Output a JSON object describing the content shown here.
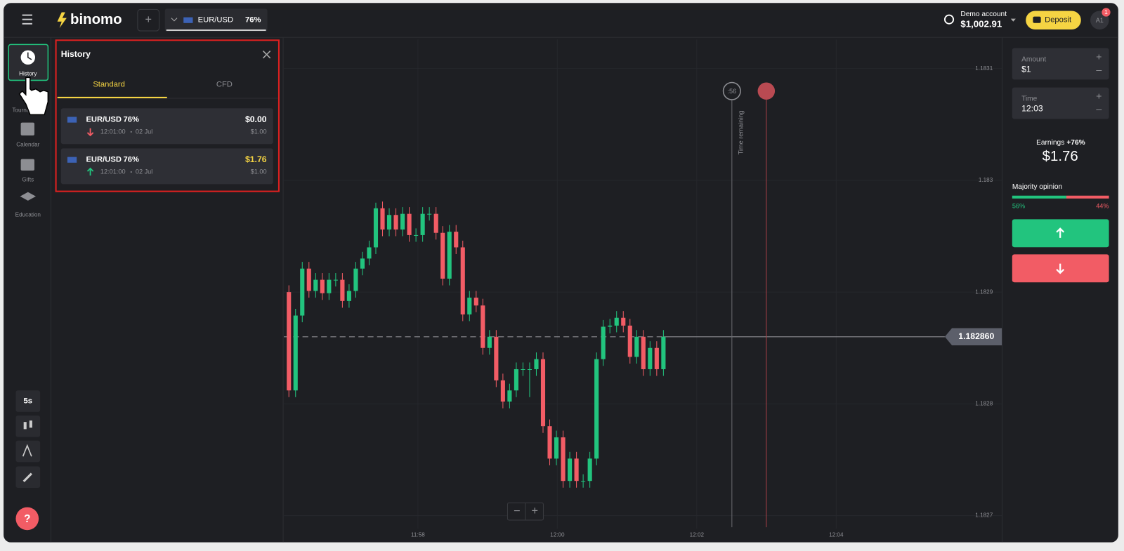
{
  "header": {
    "logo": "binomo",
    "asset": "EUR/USD",
    "payout": "76%",
    "account_label": "Demo account",
    "balance": "$1,002.91",
    "deposit": "Deposit",
    "avatar": "A1",
    "notifications": "1"
  },
  "sidebar": {
    "items": [
      "History",
      "Tournaments",
      "Calendar",
      "Gifts",
      "Education"
    ],
    "timeframe": "5s",
    "help": "?"
  },
  "history": {
    "title": "History",
    "tabs": [
      "Standard",
      "CFD"
    ],
    "trades": [
      {
        "asset": "EUR/USD",
        "payout": "76%",
        "time": "12:01:00",
        "date": "02 Jul",
        "profit": "$0.00",
        "amount": "$1.00",
        "direction": "down"
      },
      {
        "asset": "EUR/USD",
        "payout": "76%",
        "time": "12:01:00",
        "date": "02 Jul",
        "profit": "$1.76",
        "amount": "$1.00",
        "direction": "up"
      }
    ]
  },
  "chart": {
    "ylim": [
      1.182687,
      1.183126
    ],
    "yticks": [
      1.1827,
      1.1828,
      1.1829,
      1.183,
      1.1831
    ],
    "xticks": [
      "11:58",
      "12:00",
      "12:02",
      "12:04"
    ],
    "current_price": {
      "value": 1.18286,
      "label": "1.182860"
    },
    "timer": ":56",
    "time_remaining": "Time remaining",
    "candles": [
      [
        1.1829,
        1.182906,
        1.182806,
        1.182812
      ],
      [
        1.182812,
        1.182885,
        1.182806,
        1.182879
      ],
      [
        1.182879,
        1.182927,
        1.182873,
        1.182921
      ],
      [
        1.182921,
        1.182927,
        1.182895,
        1.182901
      ],
      [
        1.182901,
        1.182917,
        1.182895,
        1.182911
      ],
      [
        1.182911,
        1.182917,
        1.182893,
        1.182899
      ],
      [
        1.182899,
        1.182917,
        1.182893,
        1.182911
      ],
      [
        1.182911,
        1.182917,
        1.182905,
        1.182911
      ],
      [
        1.182911,
        1.182917,
        1.182886,
        1.182892
      ],
      [
        1.182892,
        1.182907,
        1.182886,
        1.182901
      ],
      [
        1.182901,
        1.182927,
        1.182895,
        1.182921
      ],
      [
        1.182921,
        1.182936,
        1.182915,
        1.18293
      ],
      [
        1.18293,
        1.182946,
        1.182924,
        1.18294
      ],
      [
        1.18294,
        1.18298,
        1.182934,
        1.182975
      ],
      [
        1.182975,
        1.182981,
        1.18295,
        1.182956
      ],
      [
        1.182956,
        1.182975,
        1.18295,
        1.182969
      ],
      [
        1.182969,
        1.182975,
        1.18295,
        1.182956
      ],
      [
        1.182956,
        1.182976,
        1.18295,
        1.18297
      ],
      [
        1.18297,
        1.182976,
        1.182945,
        1.182951
      ],
      [
        1.182951,
        1.182957,
        1.182945,
        1.182951
      ],
      [
        1.182951,
        1.182976,
        1.182945,
        1.18297
      ],
      [
        1.18297,
        1.182976,
        1.182964,
        1.18297
      ],
      [
        1.18297,
        1.182976,
        1.182947,
        1.182953
      ],
      [
        1.182953,
        1.182959,
        1.182906,
        1.182912
      ],
      [
        1.182912,
        1.18296,
        1.182906,
        1.182954
      ],
      [
        1.182954,
        1.18296,
        1.182934,
        1.18294
      ],
      [
        1.18294,
        1.182946,
        1.182874,
        1.18288
      ],
      [
        1.18288,
        1.182901,
        1.182874,
        1.182895
      ],
      [
        1.182895,
        1.182901,
        1.182882,
        1.182888
      ],
      [
        1.182888,
        1.182894,
        1.182844,
        1.18285
      ],
      [
        1.18285,
        1.182866,
        1.182844,
        1.18286
      ],
      [
        1.18286,
        1.182866,
        1.182815,
        1.182821
      ],
      [
        1.182821,
        1.182827,
        1.182796,
        1.182802
      ],
      [
        1.182802,
        1.182818,
        1.182796,
        1.182812
      ],
      [
        1.182812,
        1.182837,
        1.182806,
        1.182831
      ],
      [
        1.182831,
        1.182837,
        1.182825,
        1.182831
      ],
      [
        1.182831,
        1.182837,
        1.182806,
        1.182831
      ],
      [
        1.182831,
        1.182846,
        1.182825,
        1.18284
      ],
      [
        1.18284,
        1.182846,
        1.182774,
        1.18278
      ],
      [
        1.18278,
        1.182786,
        1.182745,
        1.182751
      ],
      [
        1.182751,
        1.182776,
        1.182745,
        1.18277
      ],
      [
        1.18277,
        1.182776,
        1.182725,
        1.182731
      ],
      [
        1.182731,
        1.182757,
        1.182725,
        1.182751
      ],
      [
        1.182751,
        1.182757,
        1.182725,
        1.182731
      ],
      [
        1.182731,
        1.182737,
        1.182725,
        1.182731
      ],
      [
        1.182731,
        1.182757,
        1.182725,
        1.182751
      ],
      [
        1.182751,
        1.182846,
        1.182745,
        1.18284
      ],
      [
        1.18284,
        1.182875,
        1.182834,
        1.182869
      ],
      [
        1.182869,
        1.182876,
        1.182863,
        1.18287
      ],
      [
        1.18287,
        1.182883,
        1.182864,
        1.182877
      ],
      [
        1.182877,
        1.182883,
        1.182864,
        1.18287
      ],
      [
        1.18287,
        1.182876,
        1.182836,
        1.182842
      ],
      [
        1.182842,
        1.182866,
        1.182836,
        1.18286
      ],
      [
        1.18286,
        1.182866,
        1.182825,
        1.182831
      ],
      [
        1.182831,
        1.182856,
        1.182825,
        1.18285
      ],
      [
        1.18285,
        1.182856,
        1.182825,
        1.182831
      ],
      [
        1.182831,
        1.182866,
        1.182825,
        1.18286
      ]
    ]
  },
  "trade_panel": {
    "amount_label": "Amount",
    "amount": "$1",
    "time_label": "Time",
    "time": "12:03",
    "earnings_label": "Earnings",
    "earnings_pct": "+76%",
    "earnings": "$1.76",
    "majority_label": "Majority opinion",
    "majority_up": {
      "value": 56,
      "label": "56%"
    },
    "majority_down": {
      "value": 44,
      "label": "44%"
    }
  }
}
